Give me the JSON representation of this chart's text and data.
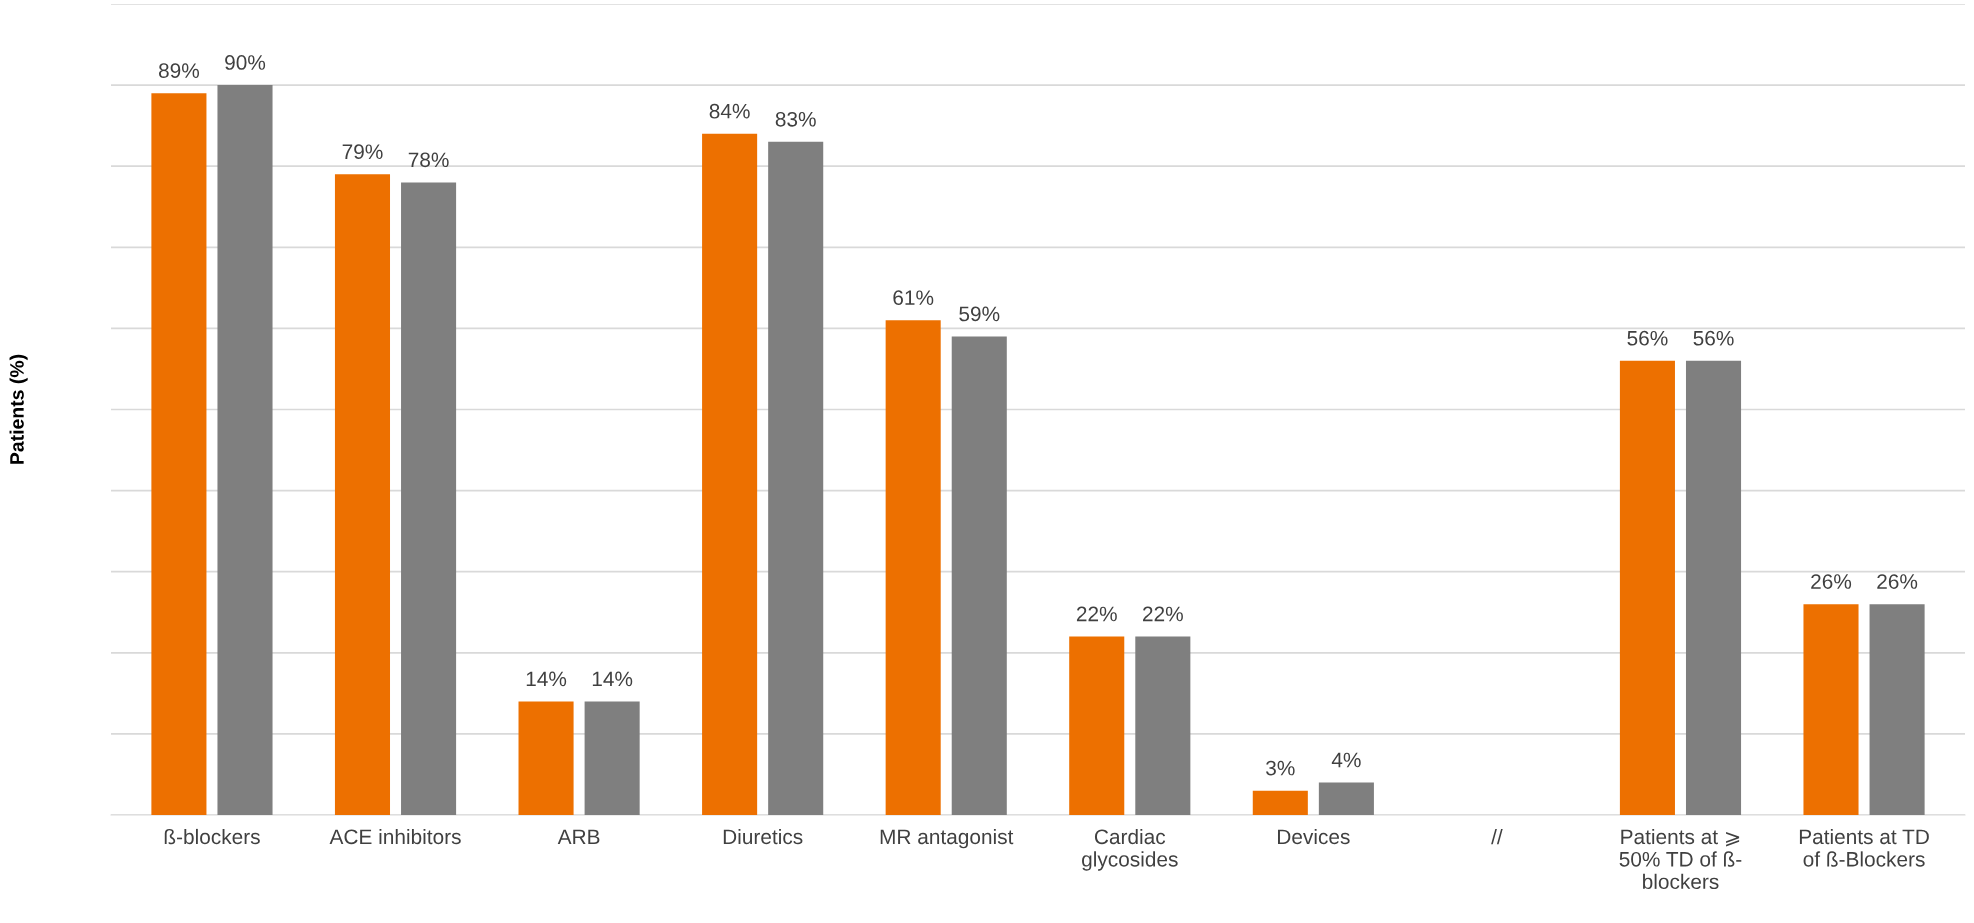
{
  "chart_data": {
    "type": "bar",
    "ylabel": "Patients (%)",
    "categories": [
      "ß-blockers",
      "ACE inhibitors",
      "ARB",
      "Diuretics",
      "MR antagonist",
      "Cardiac\nglycosides",
      "Devices",
      "//",
      "Patients at ⩾\n50% TD of ß-\nblockers",
      "Patients at TD\nof ß-Blockers"
    ],
    "series": [
      {
        "color": "#ed7000",
        "values": [
          89,
          79,
          14,
          84,
          61,
          22,
          3,
          null,
          56,
          26
        ],
        "value_labels": [
          "89%",
          "79%",
          "14%",
          "84%",
          "61%",
          "22%",
          "3%",
          null,
          "56%",
          "26%"
        ]
      },
      {
        "color": "#7f7f7f",
        "values": [
          90,
          78,
          14,
          83,
          59,
          22,
          4,
          null,
          56,
          26
        ],
        "value_labels": [
          "90%",
          "78%",
          "14%",
          "83%",
          "59%",
          "22%",
          "4%",
          null,
          "56%",
          "26%"
        ]
      }
    ],
    "ylim": [
      0,
      100
    ],
    "yticks": [
      {
        "value": 0,
        "label": null
      },
      {
        "value": 10,
        "label": null
      },
      {
        "value": 20,
        "label": null
      },
      {
        "value": 30,
        "label": null
      },
      {
        "value": 40,
        "label": null
      },
      {
        "value": 50,
        "label": null
      },
      {
        "value": 60,
        "label": null
      },
      {
        "value": 70,
        "label": null
      },
      {
        "value": 80,
        "label": null
      },
      {
        "value": 90,
        "label": null
      },
      {
        "value": 100,
        "label": null
      }
    ],
    "grid": "y",
    "tick_labels": "x"
  }
}
